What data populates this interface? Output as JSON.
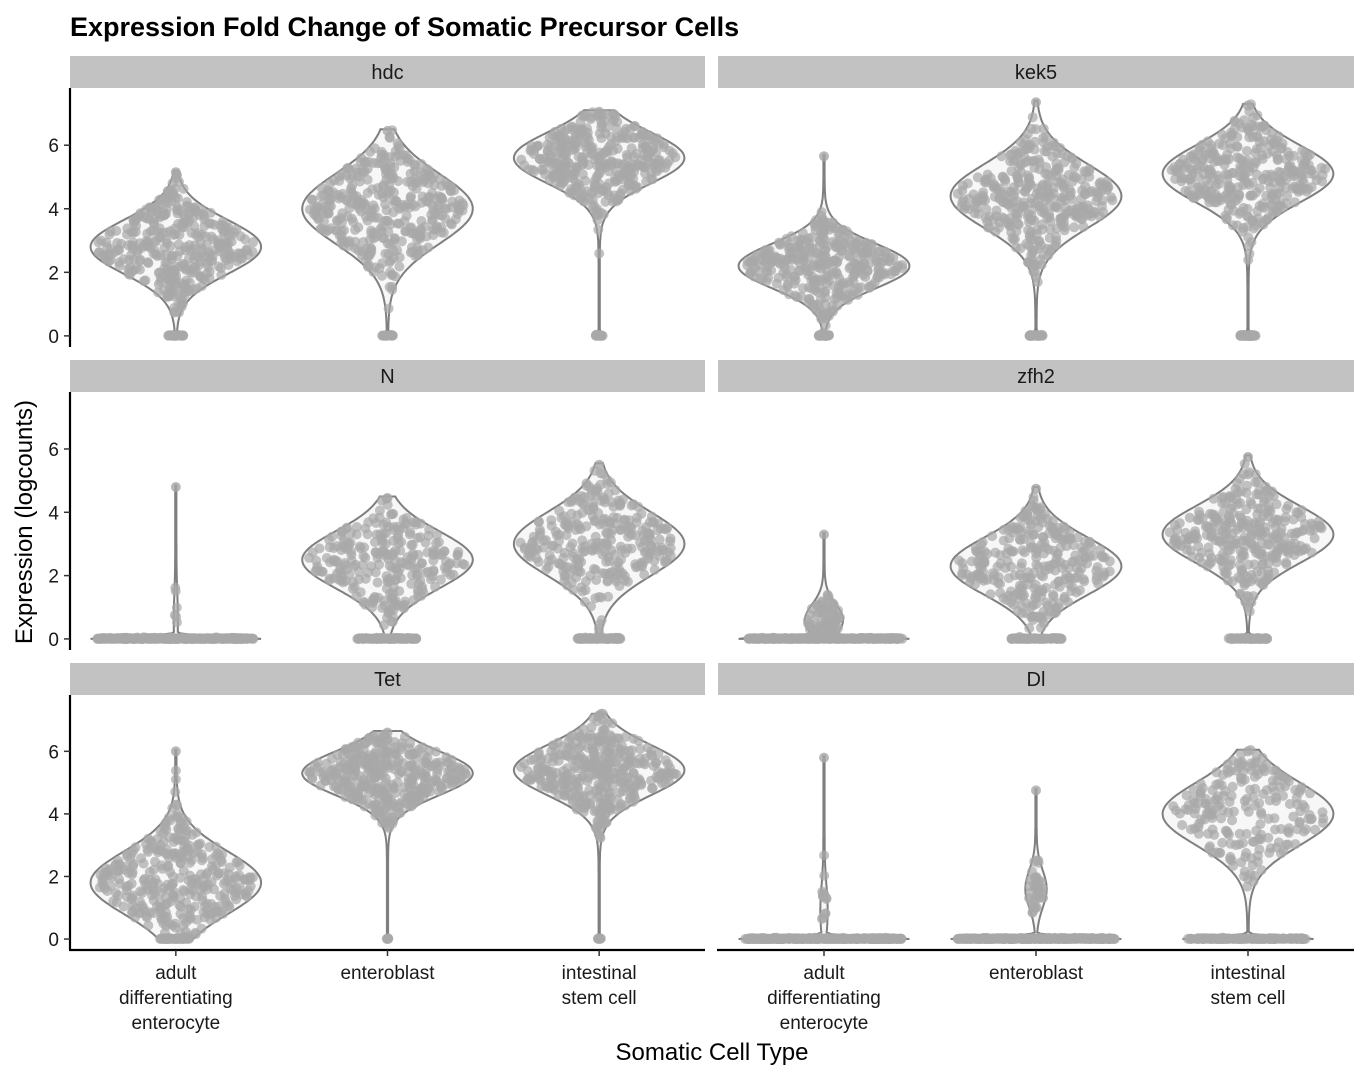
{
  "chart_data": {
    "type": "violin",
    "title": "Expression Fold Change of Somatic Precursor Cells",
    "xlabel": "Somatic Cell Type",
    "ylabel": "Expression (logcounts)",
    "categories": [
      [
        "adult",
        "differentiating",
        "enterocyte"
      ],
      [
        "enteroblast"
      ],
      [
        "intestinal",
        "stem cell"
      ]
    ],
    "y_ticks": [
      "0",
      "2",
      "4",
      "6"
    ],
    "ylim": [
      -0.35,
      7.8
    ],
    "grid": false,
    "point_color": "#a8a8a8",
    "violin_stroke": "#7f7f7f",
    "strip_fill": "#c2c2c2",
    "panels": [
      {
        "gene": "hdc",
        "violins": [
          {
            "category": "adult differentiating enterocyte",
            "max": 5.2,
            "zero": 0.08,
            "center": 2.8,
            "spread": 0.85,
            "width": 0.8
          },
          {
            "category": "enteroblast",
            "max": 6.5,
            "zero": 0.06,
            "center": 4.0,
            "spread": 1.1,
            "width": 0.8
          },
          {
            "category": "intestinal stem cell",
            "max": 7.1,
            "zero": 0.04,
            "center": 5.6,
            "spread": 0.8,
            "width": 0.8
          }
        ]
      },
      {
        "gene": "kek5",
        "violins": [
          {
            "category": "adult differentiating enterocyte",
            "max": 5.7,
            "zero": 0.06,
            "center": 2.2,
            "spread": 0.7,
            "width": 0.8
          },
          {
            "category": "enteroblast",
            "max": 7.4,
            "zero": 0.07,
            "center": 4.4,
            "spread": 1.0,
            "width": 0.8
          },
          {
            "category": "intestinal stem cell",
            "max": 7.3,
            "zero": 0.08,
            "center": 5.1,
            "spread": 0.9,
            "width": 0.8
          }
        ]
      },
      {
        "gene": "N",
        "violins": [
          {
            "category": "adult differentiating enterocyte",
            "max": 4.85,
            "zero": 0.98,
            "center": 0.6,
            "spread": 0.8,
            "width": 0.8
          },
          {
            "category": "enteroblast",
            "max": 4.5,
            "zero": 0.25,
            "center": 2.5,
            "spread": 0.9,
            "width": 0.8
          },
          {
            "category": "intestinal stem cell",
            "max": 5.55,
            "zero": 0.2,
            "center": 3.0,
            "spread": 1.0,
            "width": 0.8
          }
        ]
      },
      {
        "gene": "zfh2",
        "violins": [
          {
            "category": "adult differentiating enterocyte",
            "max": 3.35,
            "zero": 0.8,
            "center": 0.6,
            "spread": 0.5,
            "width": 0.8
          },
          {
            "category": "enteroblast",
            "max": 4.8,
            "zero": 0.22,
            "center": 2.3,
            "spread": 0.9,
            "width": 0.8
          },
          {
            "category": "intestinal stem cell",
            "max": 5.8,
            "zero": 0.18,
            "center": 3.3,
            "spread": 0.9,
            "width": 0.8
          }
        ]
      },
      {
        "gene": "Tet",
        "violins": [
          {
            "category": "adult differentiating enterocyte",
            "max": 6.05,
            "zero": 0.08,
            "center": 1.8,
            "spread": 1.0,
            "width": 0.8
          },
          {
            "category": "enteroblast",
            "max": 6.65,
            "zero": 0.01,
            "center": 5.3,
            "spread": 0.7,
            "width": 0.8
          },
          {
            "category": "intestinal stem cell",
            "max": 7.2,
            "zero": 0.02,
            "center": 5.4,
            "spread": 0.8,
            "width": 0.8
          }
        ]
      },
      {
        "gene": "Dl",
        "violins": [
          {
            "category": "adult differentiating enterocyte",
            "max": 5.85,
            "zero": 0.96,
            "center": 0.9,
            "spread": 0.8,
            "width": 0.8
          },
          {
            "category": "enteroblast",
            "max": 4.8,
            "zero": 0.88,
            "center": 1.6,
            "spread": 0.6,
            "width": 0.8
          },
          {
            "category": "intestinal stem cell",
            "max": 6.05,
            "zero": 0.4,
            "center": 4.0,
            "spread": 1.0,
            "width": 0.8
          }
        ]
      }
    ]
  }
}
